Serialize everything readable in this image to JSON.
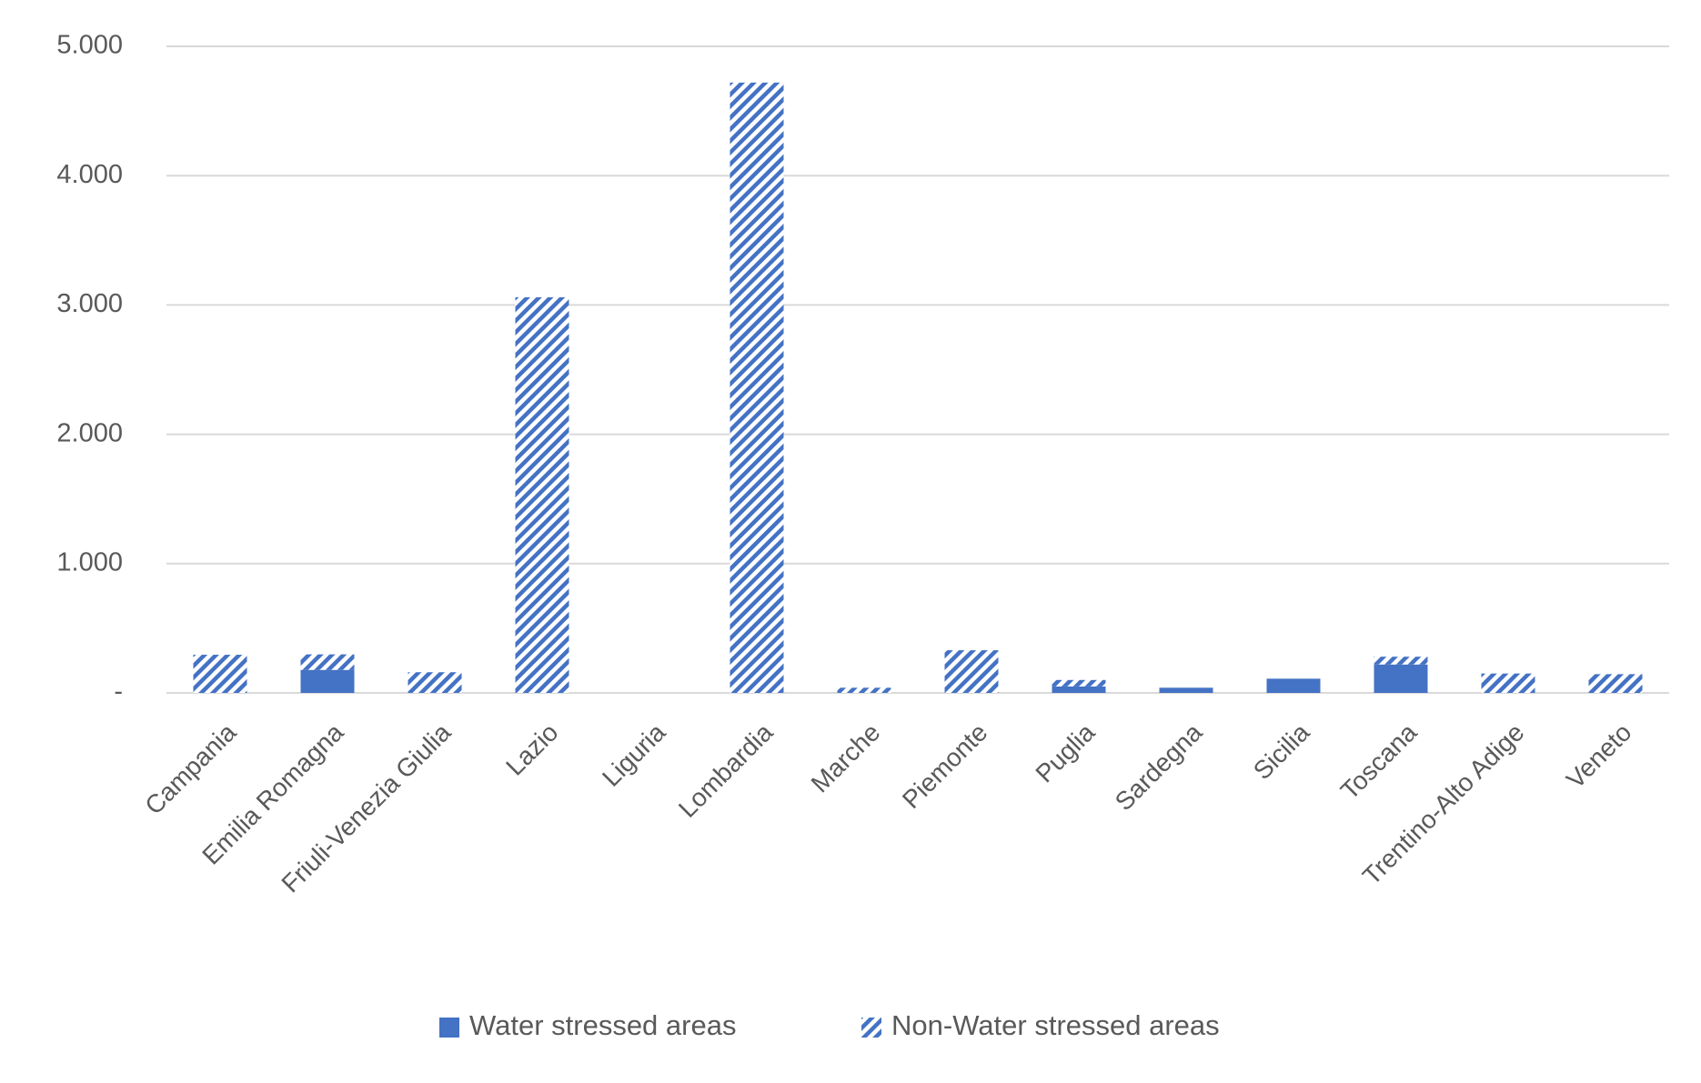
{
  "chart_data": {
    "type": "stacked-bar",
    "categories": [
      "Campania",
      "Emilia Romagna",
      "Friuli-Venezia Giulia",
      "Lazio",
      "Liguria",
      "Lombardia",
      "Marche",
      "Piemonte",
      "Puglia",
      "Sardegna",
      "Sicilia",
      "Toscana",
      "Trentino-Alto Adige",
      "Veneto"
    ],
    "series": [
      {
        "name": "Water stressed areas",
        "color": "#4472c4",
        "fill": "solid",
        "values": [
          0,
          178,
          0,
          0,
          0,
          0,
          0,
          0,
          50,
          40,
          110,
          220,
          0,
          0
        ]
      },
      {
        "name": "Non-Water stressed areas",
        "color": "#4472c4",
        "fill": "hatch",
        "values": [
          295,
          120,
          160,
          3060,
          0,
          4720,
          40,
          330,
          50,
          0,
          0,
          60,
          150,
          145
        ]
      }
    ],
    "ylim": [
      0,
      5000
    ],
    "yticks": [
      {
        "value": 0,
        "label": "-"
      },
      {
        "value": 1000,
        "label": "1.000"
      },
      {
        "value": 2000,
        "label": "2.000"
      },
      {
        "value": 3000,
        "label": "3.000"
      },
      {
        "value": 4000,
        "label": "4.000"
      },
      {
        "value": 5000,
        "label": "5.000"
      }
    ],
    "grid": true,
    "legend": "bottom"
  }
}
